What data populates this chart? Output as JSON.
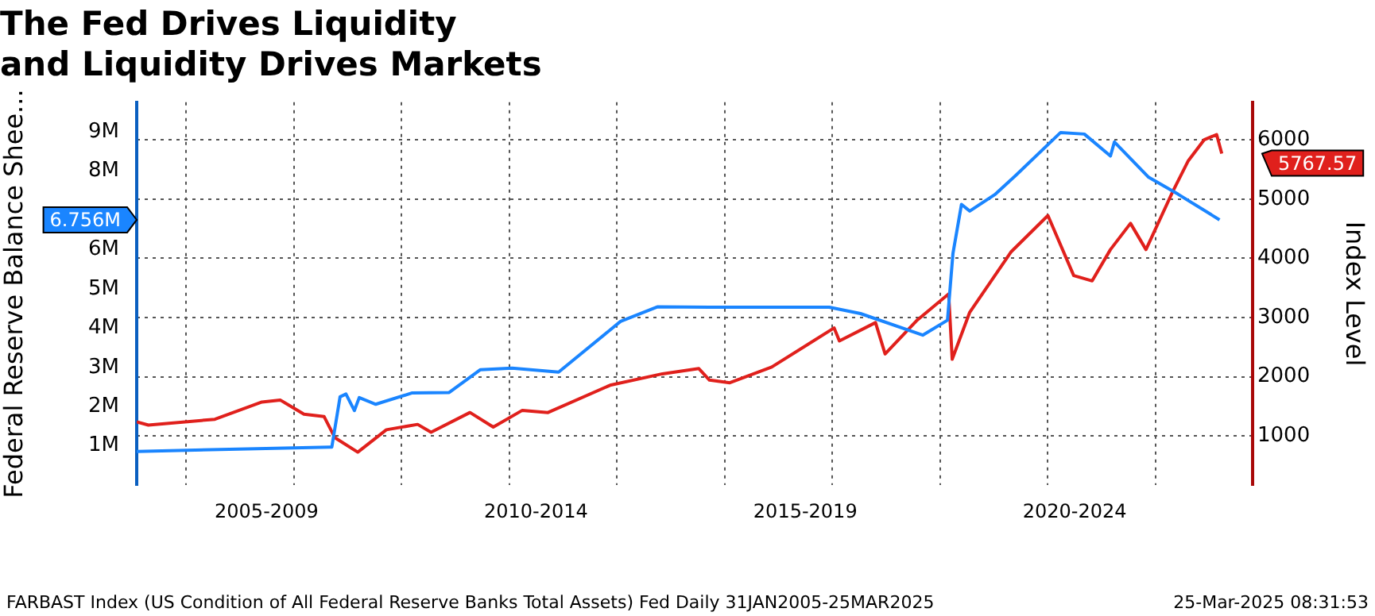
{
  "chart_data": {
    "type": "line",
    "title": "The Fed Drives Liquidity\nand Liquidity Drives Markets",
    "ylabel": "Federal Reserve Balance Shee...",
    "y2label": "Index Level",
    "xlim": [
      "2005-01-31",
      "2025-10-20"
    ],
    "xticks": [
      {
        "value": "2006-01-01",
        "label": null
      },
      {
        "value": "2007-07-01",
        "label": "2005-2009"
      },
      {
        "value": "2008-01-01",
        "label": null
      },
      {
        "value": "2010-01-01",
        "label": null
      },
      {
        "value": "2012-01-01",
        "label": null
      },
      {
        "value": "2012-07-01",
        "label": "2010-2014"
      },
      {
        "value": "2014-01-01",
        "label": null
      },
      {
        "value": "2016-01-01",
        "label": null
      },
      {
        "value": "2017-07-01",
        "label": "2015-2019"
      },
      {
        "value": "2018-01-01",
        "label": null
      },
      {
        "value": "2020-01-01",
        "label": null
      },
      {
        "value": "2022-01-01",
        "label": null
      },
      {
        "value": "2022-07-01",
        "label": "2020-2024"
      },
      {
        "value": "2024-01-01",
        "label": null
      }
    ],
    "ylim": [
      0,
      9.75
    ],
    "yticks": [
      {
        "value": 1,
        "label": "1M"
      },
      {
        "value": 2,
        "label": "2M"
      },
      {
        "value": 3,
        "label": "3M"
      },
      {
        "value": 4,
        "label": "4M"
      },
      {
        "value": 5,
        "label": "5M"
      },
      {
        "value": 6,
        "label": "6M"
      },
      {
        "value": 8,
        "label": "8M"
      },
      {
        "value": 9,
        "label": "9M"
      }
    ],
    "y2lim": [
      170,
      6635
    ],
    "y2ticks": [
      1000,
      2000,
      3000,
      4000,
      5000,
      6000
    ],
    "grid": true,
    "legend": false,
    "line_style": "solid",
    "marker": "none",
    "series": [
      {
        "color": "#1a85ff",
        "axis": "y",
        "x": [
          "2005-01-31",
          "2008-09-01",
          "2008-09-15",
          "2008-11-10",
          "2008-12-20",
          "2009-02-15",
          "2009-03-20",
          "2009-07-10",
          "2010-03-15",
          "2010-11-20",
          "2011-06-20",
          "2012-01-20",
          "2012-12-01",
          "2014-01-25",
          "2014-10-01",
          "2015-09-20",
          "2017-12-10",
          "2018-07-10",
          "2019-09-05",
          "2020-02-20",
          "2020-03-28",
          "2020-05-25",
          "2020-07-20",
          "2021-01-10",
          "2021-06-01",
          "2022-03-28",
          "2022-09-05",
          "2023-03-01",
          "2023-03-28",
          "2023-11-15",
          "2024-06-01",
          "2025-03-10"
        ],
        "values": [
          0.86,
          0.97,
          0.97,
          2.25,
          2.32,
          1.9,
          2.23,
          2.06,
          2.35,
          2.36,
          2.94,
          2.98,
          2.88,
          4.17,
          4.54,
          4.53,
          4.53,
          4.37,
          3.82,
          4.2,
          5.9,
          7.15,
          6.98,
          7.41,
          7.9,
          8.98,
          8.94,
          8.38,
          8.74,
          7.84,
          7.41,
          6.756
        ]
      },
      {
        "color": "#e0201c",
        "axis": "y2",
        "x": [
          "2005-01-31",
          "2005-04-20",
          "2006-07-15",
          "2007-05-30",
          "2007-10-01",
          "2008-03-10",
          "2008-07-25",
          "2008-10-05",
          "2009-03-10",
          "2009-09-20",
          "2010-04-20",
          "2010-07-20",
          "2011-04-10",
          "2011-09-15",
          "2012-03-30",
          "2012-09-20",
          "2013-11-15",
          "2014-11-05",
          "2015-07-10",
          "2015-09-20",
          "2016-02-05",
          "2016-11-15",
          "2018-01-12",
          "2018-02-17",
          "2018-10-20",
          "2018-12-24",
          "2019-07-30",
          "2020-02-28",
          "2020-03-23",
          "2020-07-20",
          "2021-04-25",
          "2022-01-01",
          "2022-06-25",
          "2022-10-28",
          "2023-03-01",
          "2023-07-15",
          "2023-10-28",
          "2024-04-25",
          "2024-08-10",
          "2024-11-25",
          "2025-02-18",
          "2025-03-25"
        ],
        "values": [
          1238,
          1185,
          1283,
          1574,
          1608,
          1370,
          1328,
          974,
          728,
          1106,
          1196,
          1063,
          1397,
          1151,
          1434,
          1397,
          1857,
          2050,
          2138,
          1944,
          1899,
          2164,
          2825,
          2606,
          2915,
          2386,
          2958,
          3399,
          2296,
          3090,
          4106,
          4722,
          3709,
          3619,
          4148,
          4590,
          4148,
          5119,
          5648,
          6000,
          6090,
          5767.57
        ]
      }
    ],
    "annotations": [
      "6.756M",
      "5767.57",
      "FARBAST Index (US Condition of All Federal Reserve Banks Total Assets) Fed Daily 31JAN2005-25MAR2025",
      "25-Mar-2025 08:31:53"
    ]
  }
}
